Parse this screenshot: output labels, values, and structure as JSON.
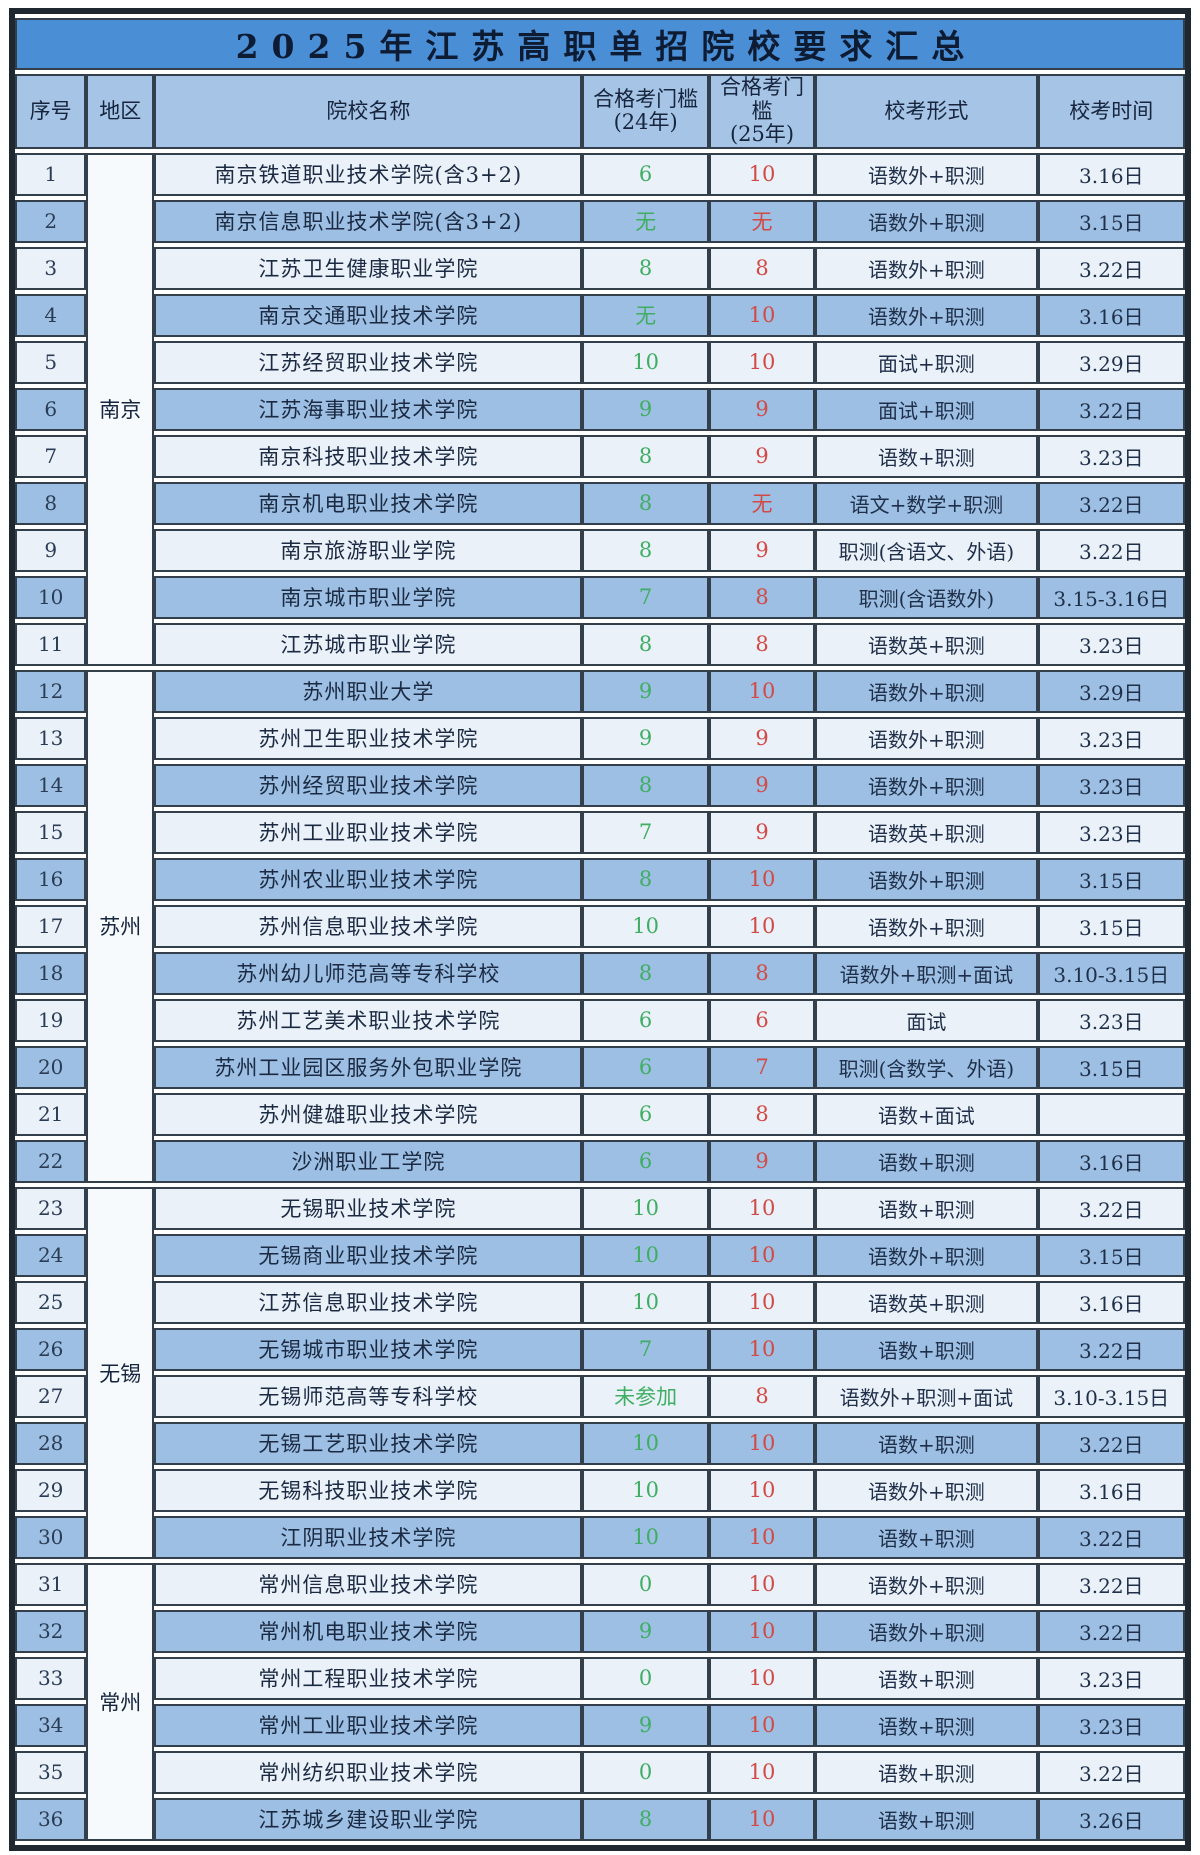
{
  "title": "2025年江苏高职单招院校要求汇总",
  "columns": [
    {
      "label": "序号"
    },
    {
      "label": "地区"
    },
    {
      "label": "院校名称"
    },
    {
      "label": "合格考门槛",
      "sub": "(24年)"
    },
    {
      "label": "合格考门槛",
      "sub": "(25年)"
    },
    {
      "label": "校考形式"
    },
    {
      "label": "校考时间"
    }
  ],
  "regions": [
    {
      "name": "南京",
      "rowspan": 11
    },
    {
      "name": "苏州",
      "rowspan": 11
    },
    {
      "name": "无锡",
      "rowspan": 8
    },
    {
      "name": "常州",
      "rowspan": 6
    }
  ],
  "rows": [
    {
      "no": "1",
      "school": "南京铁道职业技术学院(含3+2)",
      "t24": "6",
      "t25": "10",
      "form": "语数外+职测",
      "date": "3.16日"
    },
    {
      "no": "2",
      "school": "南京信息职业技术学院(含3+2)",
      "t24": "无",
      "t25": "无",
      "form": "语数外+职测",
      "date": "3.15日"
    },
    {
      "no": "3",
      "school": "江苏卫生健康职业学院",
      "t24": "8",
      "t25": "8",
      "form": "语数外+职测",
      "date": "3.22日"
    },
    {
      "no": "4",
      "school": "南京交通职业技术学院",
      "t24": "无",
      "t25": "10",
      "form": "语数外+职测",
      "date": "3.16日"
    },
    {
      "no": "5",
      "school": "江苏经贸职业技术学院",
      "t24": "10",
      "t25": "10",
      "form": "面试+职测",
      "date": "3.29日"
    },
    {
      "no": "6",
      "school": "江苏海事职业技术学院",
      "t24": "9",
      "t25": "9",
      "form": "面试+职测",
      "date": "3.22日"
    },
    {
      "no": "7",
      "school": "南京科技职业技术学院",
      "t24": "8",
      "t25": "9",
      "form": "语数+职测",
      "date": "3.23日"
    },
    {
      "no": "8",
      "school": "南京机电职业技术学院",
      "t24": "8",
      "t25": "无",
      "form": "语文+数学+职测",
      "date": "3.22日"
    },
    {
      "no": "9",
      "school": "南京旅游职业学院",
      "t24": "8",
      "t25": "9",
      "form": "职测(含语文、外语)",
      "date": "3.22日"
    },
    {
      "no": "10",
      "school": "南京城市职业学院",
      "t24": "7",
      "t25": "8",
      "form": "职测(含语数外)",
      "date": "3.15-3.16日"
    },
    {
      "no": "11",
      "school": "江苏城市职业学院",
      "t24": "8",
      "t25": "8",
      "form": "语数英+职测",
      "date": "3.23日"
    },
    {
      "no": "12",
      "school": "苏州职业大学",
      "t24": "9",
      "t25": "10",
      "form": "语数外+职测",
      "date": "3.29日"
    },
    {
      "no": "13",
      "school": "苏州卫生职业技术学院",
      "t24": "9",
      "t25": "9",
      "form": "语数外+职测",
      "date": "3.23日"
    },
    {
      "no": "14",
      "school": "苏州经贸职业技术学院",
      "t24": "8",
      "t25": "9",
      "form": "语数外+职测",
      "date": "3.23日"
    },
    {
      "no": "15",
      "school": "苏州工业职业技术学院",
      "t24": "7",
      "t25": "9",
      "form": "语数英+职测",
      "date": "3.23日"
    },
    {
      "no": "16",
      "school": "苏州农业职业技术学院",
      "t24": "8",
      "t25": "10",
      "form": "语数外+职测",
      "date": "3.15日"
    },
    {
      "no": "17",
      "school": "苏州信息职业技术学院",
      "t24": "10",
      "t25": "10",
      "form": "语数外+职测",
      "date": "3.15日"
    },
    {
      "no": "18",
      "school": "苏州幼儿师范高等专科学校",
      "t24": "8",
      "t25": "8",
      "form": "语数外+职测+面试",
      "date": "3.10-3.15日"
    },
    {
      "no": "19",
      "school": "苏州工艺美术职业技术学院",
      "t24": "6",
      "t25": "6",
      "form": "面试",
      "date": "3.23日"
    },
    {
      "no": "20",
      "school": "苏州工业园区服务外包职业学院",
      "t24": "6",
      "t25": "7",
      "form": "职测(含数学、外语)",
      "date": "3.15日"
    },
    {
      "no": "21",
      "school": "苏州健雄职业技术学院",
      "t24": "6",
      "t25": "8",
      "form": "语数+面试",
      "date": ""
    },
    {
      "no": "22",
      "school": "沙洲职业工学院",
      "t24": "6",
      "t25": "9",
      "form": "语数+职测",
      "date": "3.16日"
    },
    {
      "no": "23",
      "school": "无锡职业技术学院",
      "t24": "10",
      "t25": "10",
      "form": "语数+职测",
      "date": "3.22日"
    },
    {
      "no": "24",
      "school": "无锡商业职业技术学院",
      "t24": "10",
      "t25": "10",
      "form": "语数外+职测",
      "date": "3.15日"
    },
    {
      "no": "25",
      "school": "江苏信息职业技术学院",
      "t24": "10",
      "t25": "10",
      "form": "语数英+职测",
      "date": "3.16日"
    },
    {
      "no": "26",
      "school": "无锡城市职业技术学院",
      "t24": "7",
      "t25": "10",
      "form": "语数+职测",
      "date": "3.22日"
    },
    {
      "no": "27",
      "school": "无锡师范高等专科学校",
      "t24": "未参加",
      "t25": "8",
      "form": "语数外+职测+面试",
      "date": "3.10-3.15日"
    },
    {
      "no": "28",
      "school": "无锡工艺职业技术学院",
      "t24": "10",
      "t25": "10",
      "form": "语数+职测",
      "date": "3.22日"
    },
    {
      "no": "29",
      "school": "无锡科技职业技术学院",
      "t24": "10",
      "t25": "10",
      "form": "语数外+职测",
      "date": "3.16日"
    },
    {
      "no": "30",
      "school": "江阴职业技术学院",
      "t24": "10",
      "t25": "10",
      "form": "语数+职测",
      "date": "3.22日"
    },
    {
      "no": "31",
      "school": "常州信息职业技术学院",
      "t24": "0",
      "t25": "10",
      "form": "语数外+职测",
      "date": "3.22日"
    },
    {
      "no": "32",
      "school": "常州机电职业技术学院",
      "t24": "9",
      "t25": "10",
      "form": "语数外+职测",
      "date": "3.22日"
    },
    {
      "no": "33",
      "school": "常州工程职业技术学院",
      "t24": "0",
      "t25": "10",
      "form": "语数+职测",
      "date": "3.23日"
    },
    {
      "no": "34",
      "school": "常州工业职业技术学院",
      "t24": "9",
      "t25": "10",
      "form": "语数+职测",
      "date": "3.23日"
    },
    {
      "no": "35",
      "school": "常州纺织职业技术学院",
      "t24": "0",
      "t25": "10",
      "form": "语数+职测",
      "date": "3.22日"
    },
    {
      "no": "36",
      "school": "江苏城乡建设职业学院",
      "t24": "8",
      "t25": "10",
      "form": "语数+职测",
      "date": "3.26日"
    }
  ],
  "colors": {
    "title_bg": "#4a8ed6",
    "header_bg": "#a6c4e6",
    "row_light": "#eaf1f9",
    "row_dark": "#9cbfe3",
    "region_bg": "#f7fafd",
    "threshold_24_green": "#3fae62",
    "threshold_25_red": "#d24a44",
    "border": "#343f4c"
  }
}
